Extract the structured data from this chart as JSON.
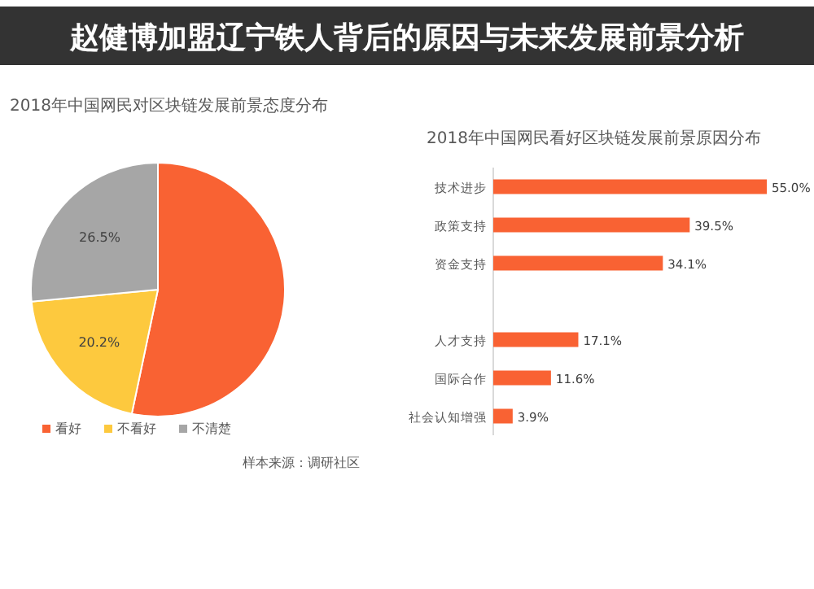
{
  "chart_data": [
    {
      "type": "other",
      "title": "赵健博加盟辽宁铁人背后的原因与未来发展前景分析"
    },
    {
      "type": "pie",
      "title": "2018年中国网民对区块链发展前景态度分布",
      "categories": [
        "看好",
        "不看好",
        "不清楚"
      ],
      "values": [
        53.3,
        20.2,
        26.5
      ],
      "colors": [
        "#f96233",
        "#fdc93e",
        "#a6a6a6"
      ],
      "value_labels": [
        null,
        "20.2%",
        "26.5%"
      ],
      "legend": "bottom",
      "annotations": [
        "样本来源：调研社区"
      ]
    },
    {
      "type": "bar",
      "orientation": "horizontal",
      "title": "2018年中国网民看好区块链发展前景原因分布",
      "categories": [
        "技术进步",
        "政策支持",
        "资金支持",
        null,
        "人才支持",
        "国际合作",
        "社会认知增强"
      ],
      "values": [
        55.0,
        39.5,
        34.1,
        null,
        17.1,
        11.6,
        3.9
      ],
      "color": "#f96233",
      "value_labels": [
        "55.0%",
        "39.5%",
        "34.1%",
        null,
        "17.1%",
        "11.6%",
        "3.9%"
      ]
    }
  ]
}
